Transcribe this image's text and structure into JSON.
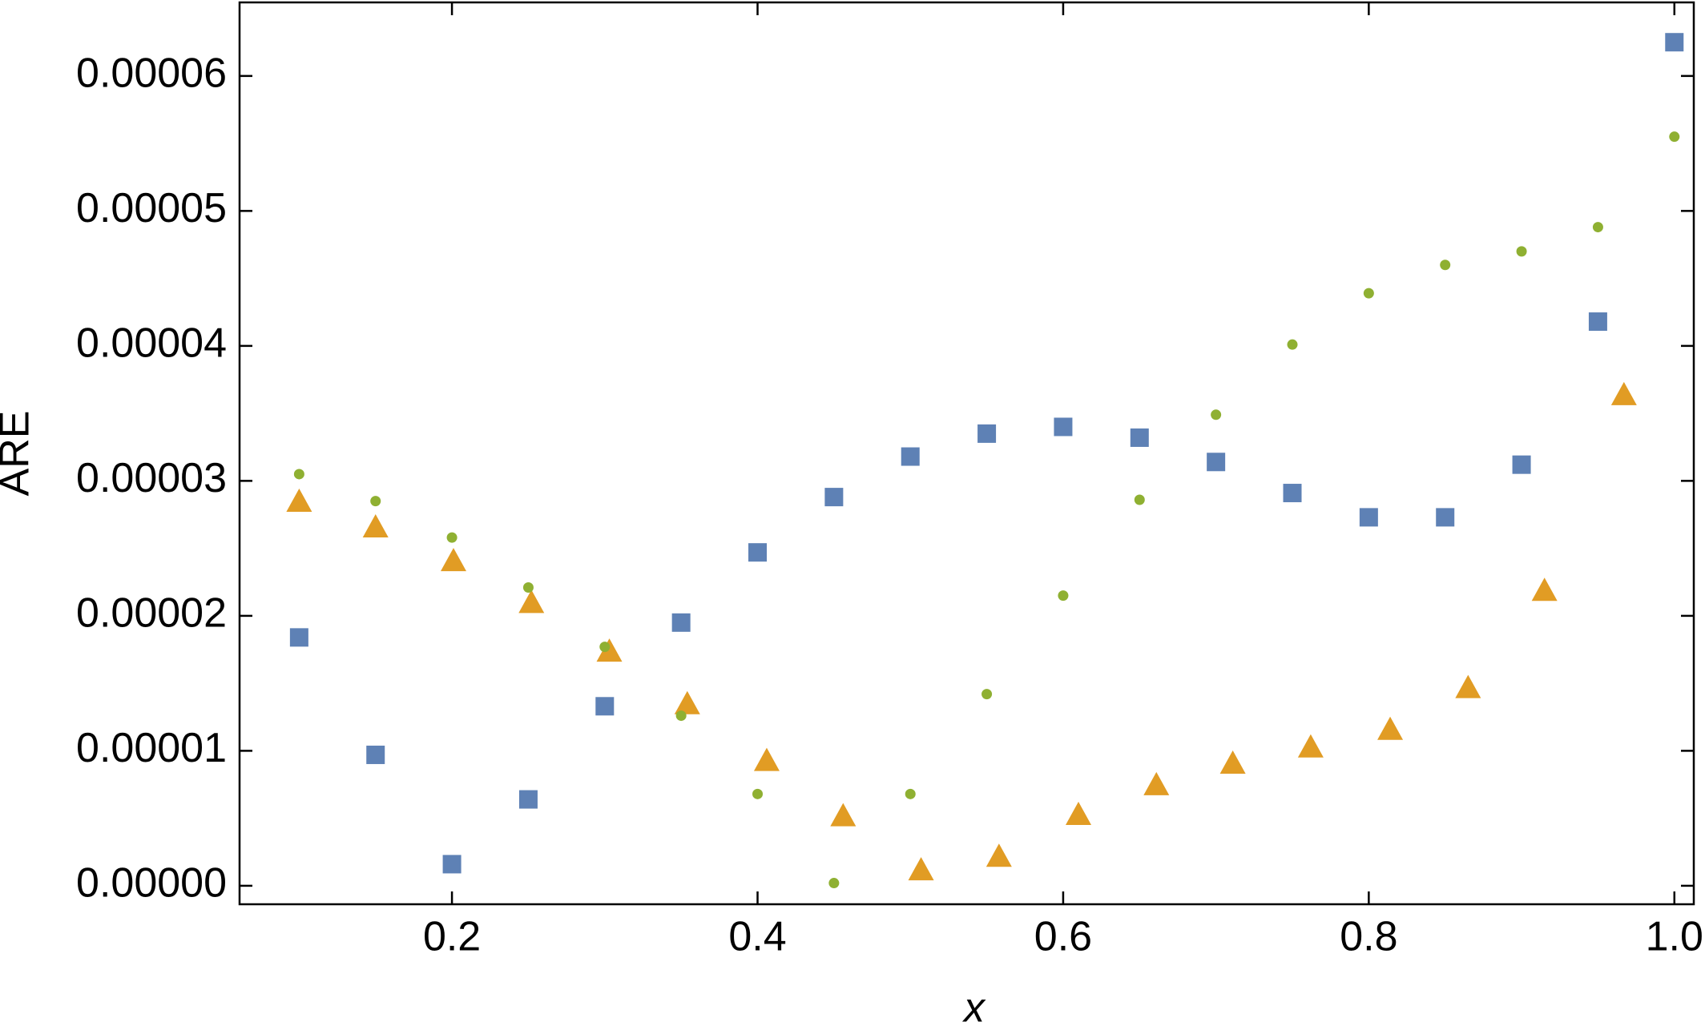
{
  "chart_data": {
    "type": "scatter",
    "xlabel": "x",
    "ylabel": "ARE",
    "xlim": [
      0.061,
      1.0127
    ],
    "ylim": [
      -1.37e-06,
      6.545e-05
    ],
    "xticks": [
      0.2,
      0.4,
      0.6,
      0.8,
      {
        "value": 1.0,
        "label": "1.0"
      }
    ],
    "yticks": [
      {
        "value": 0,
        "label": "0.00000"
      },
      {
        "value": 1e-05,
        "label": "0.00001"
      },
      {
        "value": 2e-05,
        "label": "0.00002"
      },
      {
        "value": 3e-05,
        "label": "0.00003"
      },
      {
        "value": 4e-05,
        "label": "0.00004"
      },
      {
        "value": 5e-05,
        "label": "0.00005"
      },
      {
        "value": 6e-05,
        "label": "0.00006"
      }
    ],
    "series": [
      {
        "marker": "square",
        "color": "#5e81b5",
        "x": [
          0.1,
          0.15,
          0.2,
          0.25,
          0.3,
          0.35,
          0.4,
          0.45,
          0.5,
          0.55,
          0.6,
          0.65,
          0.7,
          0.75,
          0.8,
          0.85,
          0.9,
          0.95,
          1.0
        ],
        "values": [
          1.84e-05,
          9.7e-06,
          1.6e-06,
          6.4e-06,
          1.33e-05,
          1.95e-05,
          2.47e-05,
          2.88e-05,
          3.18e-05,
          3.35e-05,
          3.4e-05,
          3.32e-05,
          3.14e-05,
          2.91e-05,
          2.73e-05,
          2.73e-05,
          3.12e-05,
          4.18e-05,
          6.25e-05
        ]
      },
      {
        "marker": "triangle",
        "color": "#e19c24",
        "x": [
          0.1,
          0.15,
          0.201,
          0.252,
          0.303,
          0.354,
          0.406,
          0.456,
          0.507,
          0.558,
          0.61,
          0.661,
          0.711,
          0.762,
          0.814,
          0.865,
          0.915,
          0.967
        ],
        "values": [
          2.83e-05,
          2.64e-05,
          2.39e-05,
          2.08e-05,
          1.72e-05,
          1.33e-05,
          9.1e-06,
          5e-06,
          1e-06,
          2e-06,
          5.1e-06,
          7.3e-06,
          8.9e-06,
          1.01e-05,
          1.14e-05,
          1.45e-05,
          2.17e-05,
          3.62e-05
        ]
      },
      {
        "marker": "circle",
        "color": "#8fb032",
        "x": [
          0.1,
          0.15,
          0.2,
          0.25,
          0.3,
          0.35,
          0.4,
          0.45,
          0.5,
          0.55,
          0.6,
          0.65,
          0.7,
          0.75,
          0.8,
          0.85,
          0.9,
          0.95,
          1.0
        ],
        "values": [
          3.05e-05,
          2.85e-05,
          2.58e-05,
          2.21e-05,
          1.77e-05,
          1.26e-05,
          6.8e-06,
          2e-07,
          6.8e-06,
          1.42e-05,
          2.15e-05,
          2.86e-05,
          3.49e-05,
          4.01e-05,
          4.39e-05,
          4.6e-05,
          4.7e-05,
          4.88e-05,
          5.55e-05
        ]
      }
    ]
  }
}
